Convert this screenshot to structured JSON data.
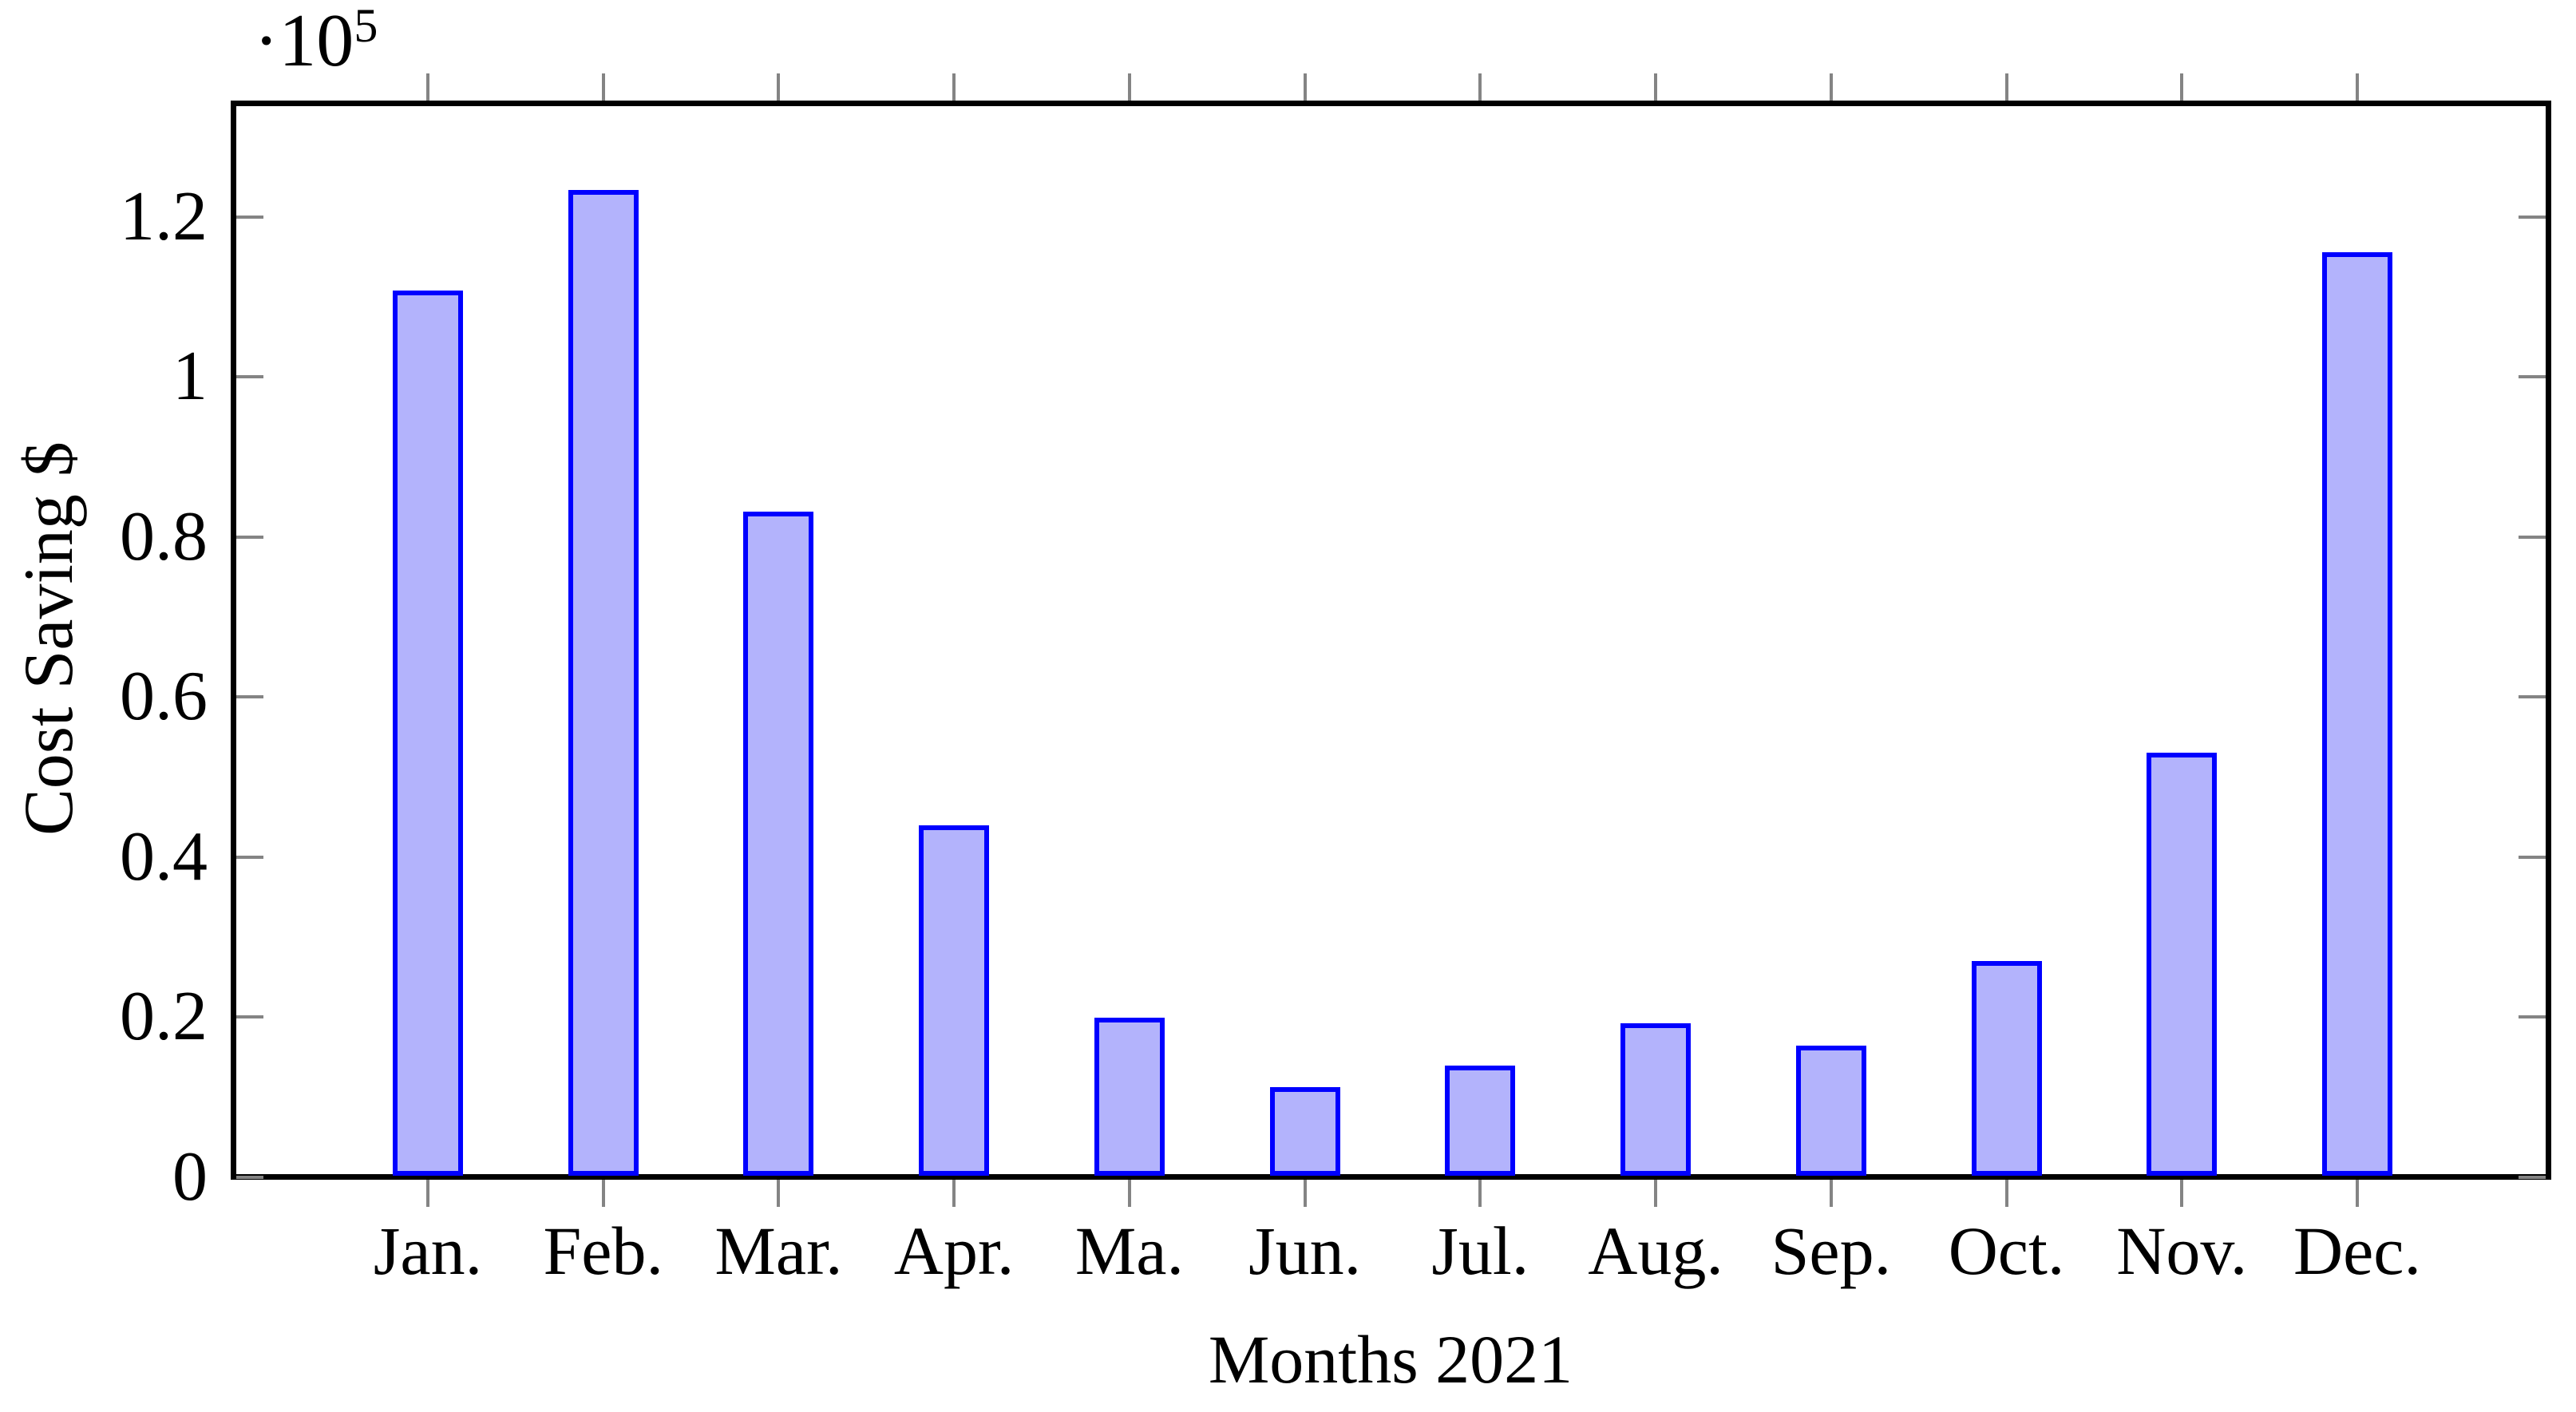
{
  "chart_data": {
    "type": "bar",
    "title": "",
    "xlabel": "Months 2021",
    "ylabel": "Cost Saving $",
    "y_multiplier_base": "·10",
    "y_multiplier_exp": "5",
    "categories": [
      "Jan.",
      "Feb.",
      "Mar.",
      "Apr.",
      "Ma.",
      "Jun.",
      "Jul.",
      "Aug.",
      "Sep.",
      "Oct.",
      "Nov.",
      "Dec."
    ],
    "values": [
      110700,
      123200,
      83000,
      43800,
      19800,
      11100,
      13800,
      19100,
      16300,
      26800,
      52900,
      115400
    ],
    "y_ticks": [
      0,
      0.2,
      0.4,
      0.6,
      0.8,
      1,
      1.2
    ],
    "y_tick_labels": [
      "0",
      "0.2",
      "0.4",
      "0.6",
      "0.8",
      "1",
      "1.2"
    ],
    "ylim": [
      0,
      134200
    ],
    "grid": false,
    "legend": null,
    "bar_outline_style": "solid",
    "colors": {
      "bar_fill": "#b3b3fc",
      "bar_border": "#0000ff",
      "axis": "#000000",
      "tick": "#848484",
      "text": "#000000",
      "background": "#ffffff"
    }
  }
}
